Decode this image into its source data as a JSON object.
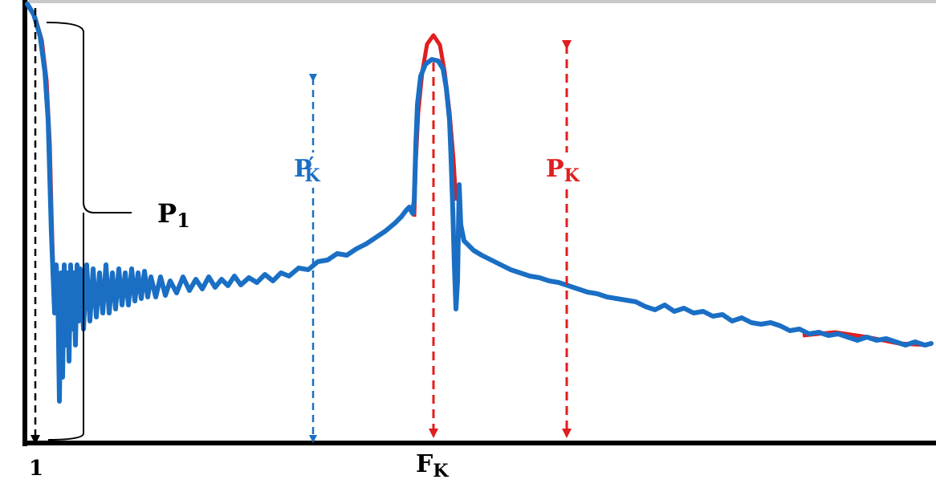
{
  "labels": {
    "p1": "P",
    "p1_sub": "1",
    "pk_prime": "P",
    "pk_prime_mark": "′",
    "pk_prime_sub": "K",
    "pk": "P",
    "pk_sub": "K",
    "fk": "F",
    "fk_sub": "K",
    "x_tick_one": "1"
  },
  "colors": {
    "blue": "#1a6fc4",
    "red": "#e01e1e",
    "black": "#000000",
    "top_line": "#c8c8c8"
  },
  "arrows": {
    "style": "dashed",
    "pk_prime_color": "blue",
    "pk_color": "red",
    "fk_color": "red",
    "one_color": "black"
  }
}
